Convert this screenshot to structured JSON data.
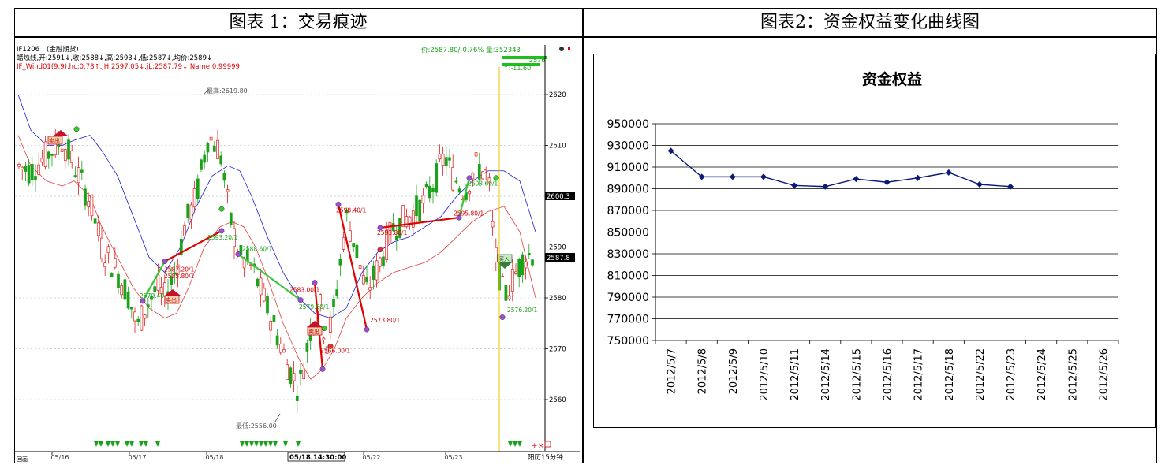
{
  "panels": {
    "left_title": "图表 1：交易痕迹",
    "right_title": "图表2：资金权益变化曲线图"
  },
  "left_chart": {
    "instrument": "IF1206",
    "instrument_type": "(金融期货)",
    "ohlc_line": "蜡烛线,开:2591↓,收:2588↓,高:2593↓,低:2587↓,均价:2589↓",
    "indicator_line": "IF_Wind01(9,9),hc:0.78↑,jH:2597.05↓,jL:2587.79↓,Name:0,99999",
    "price_volume": "价:2587.80/-0.76% 量:352343",
    "side_value": "2576",
    "side_change": "↑:-11.60",
    "current_price_tag": "2587.8",
    "upper_band_tag": "2600.3",
    "high_label": "最高:2619.80",
    "low_label": "最低:2556.00",
    "y_ticks": [
      "2620",
      "2610",
      "2600",
      "2590",
      "2580",
      "2570",
      "2560"
    ],
    "y_tick_values": [
      2620,
      2610,
      2600,
      2590,
      2580,
      2570,
      2560
    ],
    "x_ticks": [
      "05/16",
      "05/17",
      "05/18",
      "05/22",
      "05/23"
    ],
    "cursor_time": "05/18.14:30:00",
    "bottom_right_label": "阳历15分钟",
    "bottom_left_label": "回画",
    "sell_flag_label": "卖出",
    "buy_flag_label": "买入",
    "trade_labels": [
      "2579.40",
      "2587.20/1",
      "2585.80/1",
      "2593.20/1",
      "2588.60/1",
      "2579.60/1",
      "2583.00/1",
      "2566.00/1",
      "2598.40/1",
      "2573.80/1",
      "2593.80/1",
      "2595.80/1",
      "2603.60/1",
      "2576.20/1"
    ],
    "colors": {
      "up": "#e21b1b",
      "down": "#1aa31a",
      "upper_band": "#1c1cd6",
      "lower_band": "#e04040",
      "trade_line_red": "#e00000",
      "trade_line_green": "#3ec43e"
    }
  },
  "chart_data": {
    "type": "line",
    "title": "资金权益",
    "categories": [
      "2012/5/7",
      "2012/5/8",
      "2012/5/9",
      "2012/5/10",
      "2012/5/11",
      "2012/5/14",
      "2012/5/15",
      "2012/5/16",
      "2012/5/17",
      "2012/5/18",
      "2012/5/22",
      "2012/5/23",
      "2012/5/24",
      "2012/5/25",
      "2012/5/26"
    ],
    "values": [
      925000,
      901000,
      901000,
      901000,
      893000,
      892000,
      899000,
      896000,
      900000,
      905000,
      894000,
      892000,
      null,
      null,
      null
    ],
    "ylim": [
      750000,
      950000
    ],
    "y_ticks": [
      "950000",
      "930000",
      "910000",
      "890000",
      "870000",
      "850000",
      "830000",
      "810000",
      "790000",
      "770000",
      "750000"
    ],
    "y_tick_values": [
      950000,
      930000,
      910000,
      890000,
      870000,
      850000,
      830000,
      810000,
      790000,
      770000,
      750000
    ],
    "grid": true,
    "color": "#0a1a7a"
  }
}
